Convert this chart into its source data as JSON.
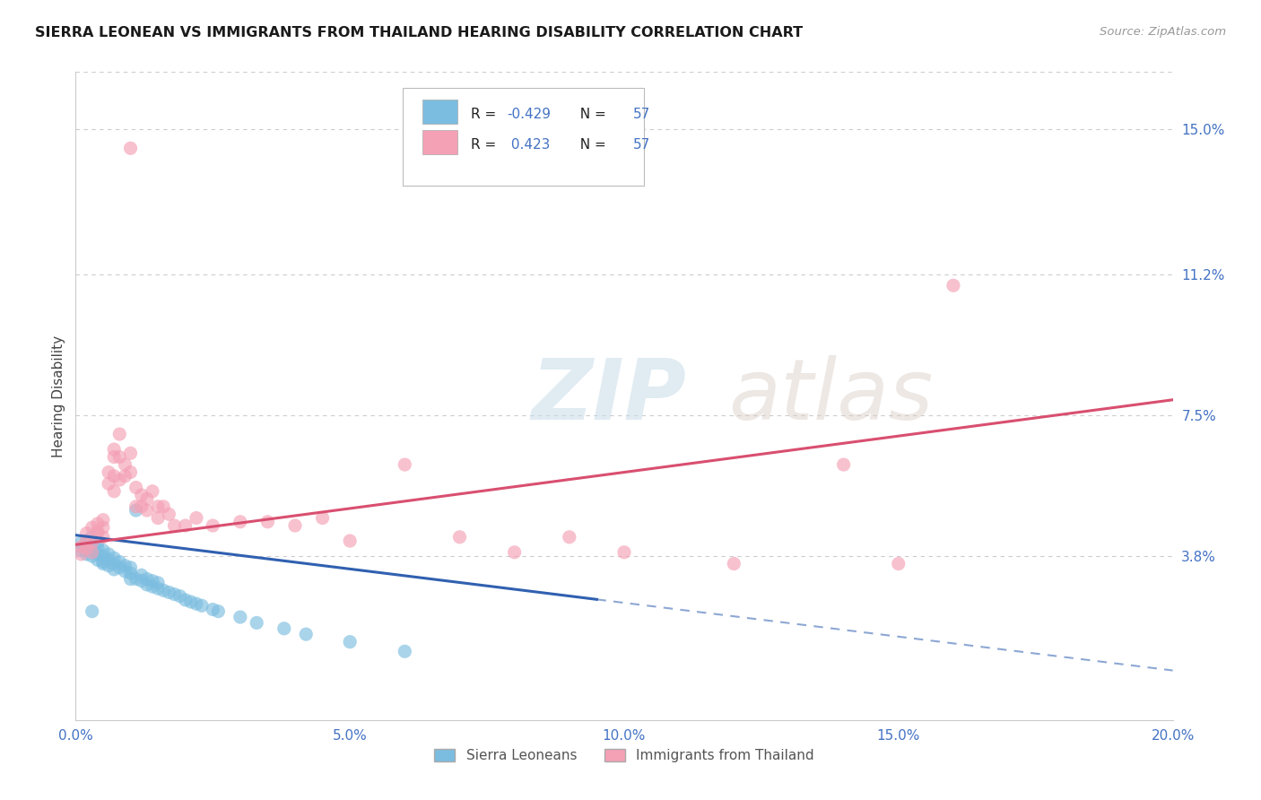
{
  "title": "SIERRA LEONEAN VS IMMIGRANTS FROM THAILAND HEARING DISABILITY CORRELATION CHART",
  "source": "Source: ZipAtlas.com",
  "ylabel": "Hearing Disability",
  "x_min": 0.0,
  "x_max": 0.2,
  "y_min": -0.005,
  "y_max": 0.165,
  "y_ticks": [
    0.038,
    0.075,
    0.112,
    0.15
  ],
  "y_tick_labels": [
    "3.8%",
    "7.5%",
    "11.2%",
    "15.0%"
  ],
  "x_ticks": [
    0.0,
    0.05,
    0.1,
    0.15,
    0.2
  ],
  "x_tick_labels": [
    "0.0%",
    "5.0%",
    "10.0%",
    "15.0%",
    "20.0%"
  ],
  "blue_R": -0.429,
  "blue_N": 57,
  "pink_R": 0.423,
  "pink_N": 57,
  "blue_color": "#7bbde0",
  "pink_color": "#f4a0b5",
  "blue_line_color": "#3060b0",
  "pink_line_color": "#d94f70",
  "legend_label_blue": "Sierra Leoneans",
  "legend_label_pink": "Immigrants from Thailand",
  "blue_scatter": [
    [
      0.001,
      0.0395
    ],
    [
      0.001,
      0.0415
    ],
    [
      0.002,
      0.0385
    ],
    [
      0.002,
      0.04
    ],
    [
      0.002,
      0.042
    ],
    [
      0.003,
      0.038
    ],
    [
      0.003,
      0.0395
    ],
    [
      0.003,
      0.041
    ],
    [
      0.003,
      0.043
    ],
    [
      0.004,
      0.037
    ],
    [
      0.004,
      0.0385
    ],
    [
      0.004,
      0.04
    ],
    [
      0.004,
      0.0415
    ],
    [
      0.005,
      0.0365
    ],
    [
      0.005,
      0.038
    ],
    [
      0.005,
      0.0395
    ],
    [
      0.005,
      0.036
    ],
    [
      0.006,
      0.0355
    ],
    [
      0.006,
      0.037
    ],
    [
      0.006,
      0.0385
    ],
    [
      0.007,
      0.0345
    ],
    [
      0.007,
      0.036
    ],
    [
      0.007,
      0.0375
    ],
    [
      0.008,
      0.035
    ],
    [
      0.008,
      0.0365
    ],
    [
      0.009,
      0.034
    ],
    [
      0.009,
      0.0355
    ],
    [
      0.01,
      0.0335
    ],
    [
      0.01,
      0.035
    ],
    [
      0.01,
      0.032
    ],
    [
      0.011,
      0.05
    ],
    [
      0.011,
      0.032
    ],
    [
      0.012,
      0.0315
    ],
    [
      0.012,
      0.033
    ],
    [
      0.013,
      0.0305
    ],
    [
      0.013,
      0.032
    ],
    [
      0.014,
      0.03
    ],
    [
      0.014,
      0.0315
    ],
    [
      0.015,
      0.0295
    ],
    [
      0.015,
      0.031
    ],
    [
      0.016,
      0.029
    ],
    [
      0.017,
      0.0285
    ],
    [
      0.018,
      0.028
    ],
    [
      0.019,
      0.0275
    ],
    [
      0.02,
      0.0265
    ],
    [
      0.021,
      0.026
    ],
    [
      0.022,
      0.0255
    ],
    [
      0.023,
      0.025
    ],
    [
      0.025,
      0.024
    ],
    [
      0.026,
      0.0235
    ],
    [
      0.03,
      0.022
    ],
    [
      0.033,
      0.0205
    ],
    [
      0.038,
      0.019
    ],
    [
      0.042,
      0.0175
    ],
    [
      0.05,
      0.0155
    ],
    [
      0.003,
      0.0235
    ],
    [
      0.06,
      0.013
    ]
  ],
  "pink_scatter": [
    [
      0.001,
      0.0385
    ],
    [
      0.001,
      0.0405
    ],
    [
      0.002,
      0.04
    ],
    [
      0.002,
      0.042
    ],
    [
      0.002,
      0.044
    ],
    [
      0.003,
      0.039
    ],
    [
      0.003,
      0.0415
    ],
    [
      0.003,
      0.0455
    ],
    [
      0.004,
      0.0445
    ],
    [
      0.004,
      0.0465
    ],
    [
      0.004,
      0.044
    ],
    [
      0.005,
      0.043
    ],
    [
      0.005,
      0.0455
    ],
    [
      0.005,
      0.0475
    ],
    [
      0.006,
      0.057
    ],
    [
      0.006,
      0.06
    ],
    [
      0.007,
      0.064
    ],
    [
      0.007,
      0.066
    ],
    [
      0.007,
      0.059
    ],
    [
      0.007,
      0.055
    ],
    [
      0.008,
      0.07
    ],
    [
      0.008,
      0.064
    ],
    [
      0.008,
      0.058
    ],
    [
      0.009,
      0.062
    ],
    [
      0.009,
      0.059
    ],
    [
      0.01,
      0.065
    ],
    [
      0.01,
      0.06
    ],
    [
      0.01,
      0.145
    ],
    [
      0.011,
      0.056
    ],
    [
      0.011,
      0.051
    ],
    [
      0.012,
      0.054
    ],
    [
      0.012,
      0.051
    ],
    [
      0.013,
      0.053
    ],
    [
      0.013,
      0.05
    ],
    [
      0.014,
      0.055
    ],
    [
      0.015,
      0.048
    ],
    [
      0.015,
      0.051
    ],
    [
      0.016,
      0.051
    ],
    [
      0.017,
      0.049
    ],
    [
      0.018,
      0.046
    ],
    [
      0.02,
      0.046
    ],
    [
      0.022,
      0.048
    ],
    [
      0.025,
      0.046
    ],
    [
      0.03,
      0.047
    ],
    [
      0.035,
      0.047
    ],
    [
      0.04,
      0.046
    ],
    [
      0.045,
      0.048
    ],
    [
      0.05,
      0.042
    ],
    [
      0.06,
      0.062
    ],
    [
      0.07,
      0.043
    ],
    [
      0.08,
      0.039
    ],
    [
      0.09,
      0.043
    ],
    [
      0.1,
      0.039
    ],
    [
      0.12,
      0.036
    ],
    [
      0.14,
      0.062
    ],
    [
      0.15,
      0.036
    ],
    [
      0.16,
      0.109
    ]
  ],
  "blue_trend": {
    "x_start": 0.0,
    "x_end": 0.2,
    "y_start": 0.0435,
    "y_end": 0.008,
    "solid_end": 0.095
  },
  "pink_trend": {
    "x_start": 0.0,
    "x_end": 0.2,
    "y_start": 0.041,
    "y_end": 0.079
  },
  "background_color": "#ffffff",
  "grid_color": "#cccccc",
  "title_color": "#1a1a1a",
  "tick_label_color": "#4472c4"
}
